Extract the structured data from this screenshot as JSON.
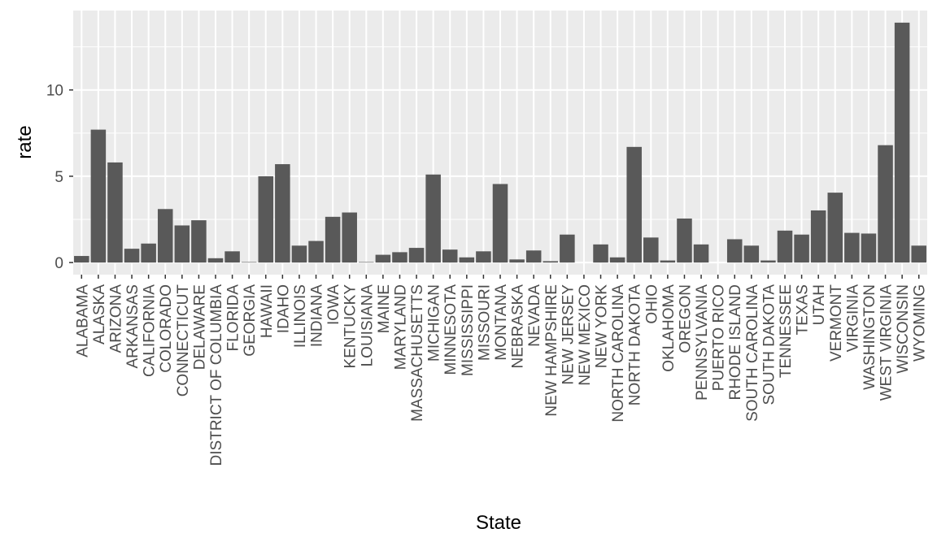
{
  "chart_data": {
    "type": "bar",
    "title": "",
    "xlabel": "State",
    "ylabel": "rate",
    "ylim": [
      -0.7,
      14.6
    ],
    "yticks": [
      0,
      5,
      10
    ],
    "grid": true,
    "legend": "none",
    "colors": {
      "panel": "#ebebeb",
      "grid_major": "#ffffff",
      "bar": "#595959",
      "tick_text": "#4d4d4d",
      "axis_ticks": "#333333",
      "axis_title": "#000000"
    },
    "categories": [
      "ALABAMA",
      "ALASKA",
      "ARIZONA",
      "ARKANSAS",
      "CALIFORNIA",
      "COLORADO",
      "CONNECTICUT",
      "DELAWARE",
      "DISTRICT OF COLUMBIA",
      "FLORIDA",
      "GEORGIA",
      "HAWAII",
      "IDAHO",
      "ILLINOIS",
      "INDIANA",
      "IOWA",
      "KENTUCKY",
      "LOUISIANA",
      "MAINE",
      "MARYLAND",
      "MASSACHUSETTS",
      "MICHIGAN",
      "MINNESOTA",
      "MISSISSIPPI",
      "MISSOURI",
      "MONTANA",
      "NEBRASKA",
      "NEVADA",
      "NEW HAMPSHIRE",
      "NEW JERSEY",
      "NEW MEXICO",
      "NEW YORK",
      "NORTH CAROLINA",
      "NORTH DAKOTA",
      "OHIO",
      "OKLAHOMA",
      "OREGON",
      "PENNSYLVANIA",
      "PUERTO RICO",
      "RHODE ISLAND",
      "SOUTH CAROLINA",
      "SOUTH DAKOTA",
      "TENNESSEE",
      "TEXAS",
      "UTAH",
      "VERMONT",
      "VIRGINIA",
      "WASHINGTON",
      "WEST VIRGINIA",
      "WISCONSIN",
      "WYOMING"
    ],
    "values": [
      0.38,
      7.7,
      5.8,
      0.8,
      1.1,
      3.1,
      2.15,
      2.45,
      0.25,
      0.65,
      0.03,
      5.0,
      5.7,
      0.98,
      1.25,
      2.65,
      2.9,
      0.03,
      0.45,
      0.6,
      0.85,
      5.1,
      0.75,
      0.3,
      0.65,
      4.55,
      0.18,
      0.7,
      0.08,
      1.62,
      0.0,
      1.05,
      0.3,
      6.7,
      1.45,
      0.12,
      2.55,
      1.05,
      0.0,
      1.35,
      0.98,
      0.12,
      1.85,
      1.62,
      3.02,
      4.05,
      1.72,
      1.68,
      6.8,
      13.9,
      0.98
    ]
  }
}
